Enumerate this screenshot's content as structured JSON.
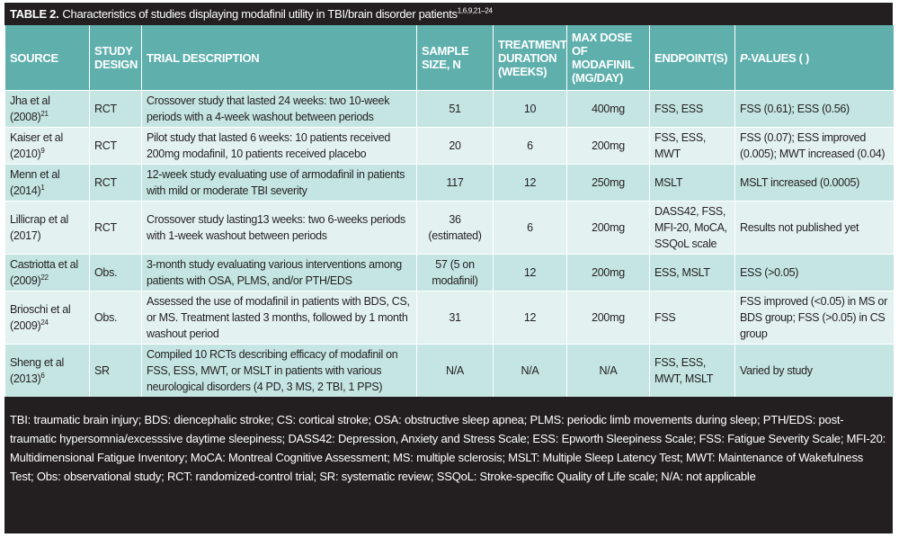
{
  "header": {
    "title": {
      "label": "TABLE 2.",
      "text": "Characteristics of studies displaying modafinil utility in TBI/brain disorder patients",
      "sup": "1,6,9,21–24"
    }
  },
  "table": {
    "columns": [
      "SOURCE",
      "STUDY DESIGN",
      "TRIAL DESCRIPTION",
      "SAMPLE SIZE, N",
      "TREATMENT DURATION (WEEKS)",
      "MAX DOSE OF MODAFINIL (MG/DAY)",
      "ENDPOINT(S)",
      {
        "italic": "P",
        "text": "-VALUES ( )"
      }
    ],
    "rows": [
      [
        {
          "text": "Jha et al (2008)",
          "sup": "21"
        },
        "RCT",
        "Crossover study that lasted 24 weeks: two 10-week periods with a 4-week washout between periods",
        "51",
        "10",
        "400mg",
        "FSS, ESS",
        "FSS (0.61); ESS (0.56)"
      ],
      [
        {
          "text": "Kaiser et al (2010)",
          "sup": "9"
        },
        "RCT",
        "Pilot study that lasted 6 weeks: 10 patients received 200mg modafinil, 10 patients received placebo",
        "20",
        "6",
        "200mg",
        "FSS, ESS, MWT",
        "FSS (0.07); ESS improved (0.005); MWT increased (0.04)"
      ],
      [
        {
          "text": "Menn et al (2014)",
          "sup": "1"
        },
        "RCT",
        "12-week study evaluating use of armodafinil in patients with mild or moderate TBI severity",
        "117",
        "12",
        "250mg",
        "MSLT",
        "MSLT increased (0.0005)"
      ],
      [
        {
          "text": "Lillicrap et al (2017)"
        },
        "RCT",
        "Crossover study lasting13 weeks: two 6-weeks periods with 1-week washout between periods",
        "36 (estimated)",
        "6",
        "200mg",
        "DASS42, FSS, MFI-20, MoCA, SSQoL scale",
        "Results not published yet"
      ],
      [
        {
          "text": "Castriotta et al (2009)",
          "sup": "22"
        },
        "Obs.",
        "3-month study evaluating various interventions among patients with OSA, PLMS, and/or PTH/EDS",
        "57 (5 on modafinil)",
        "12",
        "200mg",
        "ESS, MSLT",
        "ESS (>0.05)"
      ],
      [
        {
          "text": "Brioschi et al (2009)",
          "sup": "24"
        },
        "Obs.",
        "Assessed the use of modafinil in patients with BDS, CS, or MS. Treatment lasted 3 months, followed by 1 month washout period",
        "31",
        "12",
        "200mg",
        "FSS",
        "FSS improved (<0.05) in MS or BDS group; FSS (>0.05) in CS group"
      ],
      [
        {
          "text": "Sheng et al (2013)",
          "sup": "6"
        },
        "SR",
        "Compiled 10 RCTs  describing efficacy of modafinil on FSS, ESS, MWT, or MSLT in patients with various neurological disorders (4 PD, 3 MS, 2 TBI, 1 PPS)",
        "N/A",
        "N/A",
        "N/A",
        "FSS, ESS, MWT, MSLT",
        "Varied by study"
      ]
    ]
  },
  "footnote": "TBI: traumatic brain injury; BDS: diencephalic stroke; CS: cortical stroke; OSA: obstructive sleep apnea; PLMS: periodic limb movements during sleep; PTH/EDS: post-traumatic hypersomnia/excesssive daytime sleepiness; DASS42: Depression, Anxiety and Stress Scale; ESS: Epworth Sleepiness Scale; FSS: Fatigue Severity Scale; MFI-20: Multidimensional Fatigue Inventory; MoCA: Montreal Cognitive Assessment; MS: multiple sclerosis; MSLT: Multiple Sleep Latency Test; MWT: Maintenance of Wakefulness Test; Obs: observational study; RCT: randomized-control trial; SR: systematic review; SSQoL: Stroke-specific Quality of Life scale; N/A: not applicable"
}
